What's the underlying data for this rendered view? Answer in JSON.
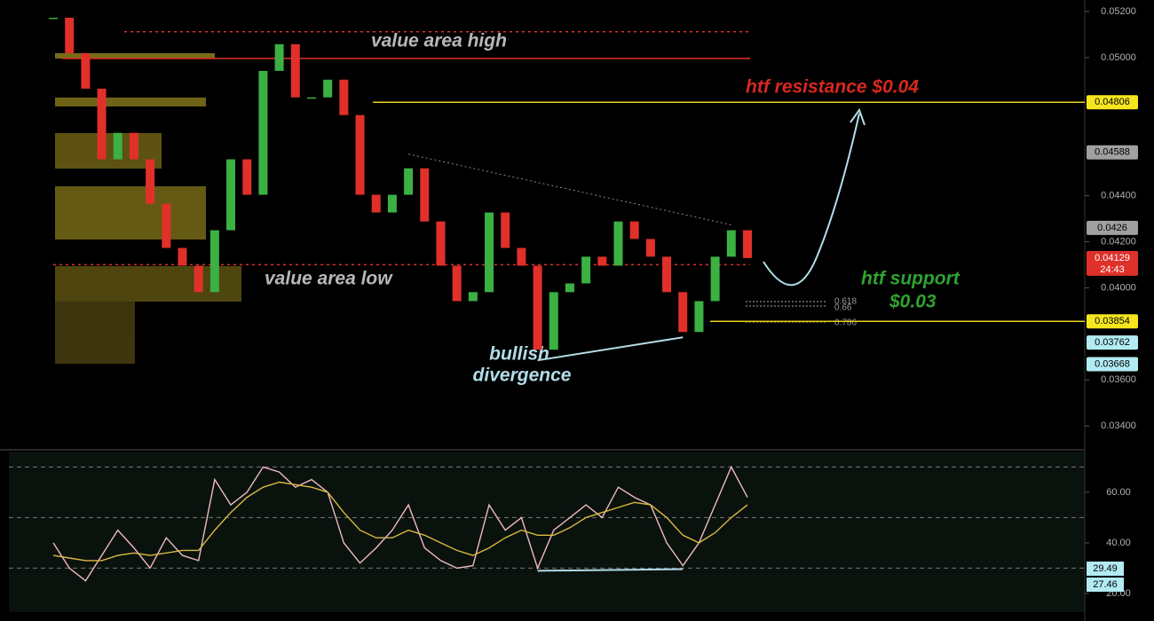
{
  "chart_data": [
    {
      "type": "candle",
      "values": [
        0.05173,
        0.05019,
        0.04865,
        0.04558,
        0.04673,
        0.04558,
        0.04365,
        0.04173,
        0.04096,
        0.03981,
        0.0425,
        0.04558,
        0.04404,
        0.04942,
        0.05058,
        0.04827,
        0.04827,
        0.04904,
        0.0475,
        0.04404,
        0.04327,
        0.04404,
        0.04519,
        0.04288,
        0.04096,
        0.03942,
        0.03981,
        0.04327,
        0.04173,
        0.04096,
        0.03731,
        0.03981,
        0.04019,
        0.04135,
        0.04096,
        0.04288,
        0.04212,
        0.04135,
        0.03981,
        0.03808,
        0.03942,
        0.04135,
        0.0425,
        0.04129
      ],
      "up_color": "#3cb043",
      "down_color": "#e0302a",
      "ylim": [
        0.03304,
        0.0525
      ],
      "yticks": [
        {
          "value": 0.052,
          "label": "0.05200"
        },
        {
          "value": 0.05,
          "label": "0.05000"
        },
        {
          "value": 0.044,
          "label": "0.04400"
        },
        {
          "value": 0.042,
          "label": "0.04200"
        },
        {
          "value": 0.04,
          "label": "0.04000"
        },
        {
          "value": 0.036,
          "label": "0.03600"
        },
        {
          "value": 0.034,
          "label": "0.03400"
        }
      ],
      "levels": [
        {
          "value": 0.05112,
          "color": "#e0302a",
          "dash": true
        },
        {
          "value": 0.04996,
          "color": "#e0302a",
          "dash": false
        },
        {
          "value": 0.04806,
          "color": "#e8d21a",
          "dash": false
        },
        {
          "value": 0.041,
          "color": "#e0302a",
          "dash": true
        },
        {
          "value": 0.03854,
          "color": "#e8d21a",
          "dash": false
        }
      ],
      "price_labels": [
        {
          "value": 0.04806,
          "color": "#f5e61e"
        },
        {
          "value": 0.04588,
          "color": "#a0a0a0"
        },
        {
          "value": 0.0426,
          "color": "#a0a0a0"
        },
        {
          "value": 0.04129,
          "color": "#e0302a"
        },
        {
          "value": 0.03854,
          "color": "#f5e61e"
        },
        {
          "value": 0.03762,
          "color": "#b2ebf2"
        },
        {
          "value": 0.03668,
          "color": "#b2ebf2"
        }
      ],
      "countdown": "24:43",
      "annotations": {
        "vah": "value area high",
        "val": "value area low",
        "resistance": "htf resistance $0.04",
        "support": "htf support",
        "support_price": "$0.03",
        "div1": "bullish",
        "div2": "divergence",
        "fib1": "0.618",
        "fib2": "0.66",
        "fib3": "0.786"
      }
    },
    {
      "type": "line",
      "series": [
        {
          "color": "#f2b8c6",
          "values": [
            40,
            30,
            25,
            35,
            45,
            38,
            30,
            42,
            35,
            33,
            65,
            55,
            60,
            70,
            68,
            62,
            65,
            60,
            40,
            32,
            38,
            45,
            55,
            38,
            33,
            30,
            31,
            55,
            45,
            50,
            30,
            45,
            50,
            55,
            50,
            62,
            58,
            55,
            40,
            31,
            40,
            55,
            70,
            58
          ]
        },
        {
          "color": "#d9b940",
          "values": [
            35,
            34,
            33,
            33,
            35,
            36,
            35,
            36,
            37,
            37,
            45,
            52,
            58,
            62,
            64,
            63,
            62,
            60,
            52,
            45,
            42,
            42,
            45,
            43,
            40,
            37,
            35,
            38,
            42,
            45,
            43,
            43,
            46,
            50,
            52,
            54,
            56,
            55,
            50,
            43,
            40,
            44,
            50,
            55
          ]
        }
      ],
      "ylim": [
        12.6,
        76.8
      ],
      "yticks": [
        {
          "value": 20,
          "label": "20.00"
        },
        {
          "value": 40,
          "label": "40.00"
        },
        {
          "value": 60,
          "label": "60.00"
        }
      ],
      "levels": [
        70,
        50,
        30
      ],
      "price_labels": [
        29.49,
        27.46
      ]
    }
  ]
}
